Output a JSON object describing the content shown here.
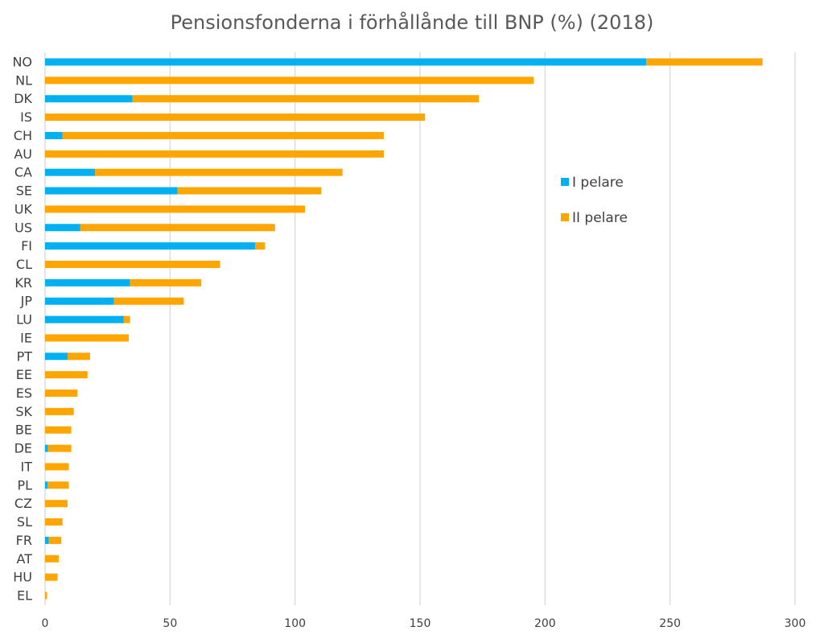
{
  "chart_data": {
    "type": "bar",
    "orientation": "horizontal",
    "stacked": true,
    "title": "Pensionsfonderna i förhållånde till BNP (%) (2018)",
    "xlabel": "",
    "ylabel": "",
    "xlim": [
      0,
      300
    ],
    "xticks": [
      0,
      50,
      100,
      150,
      200,
      250,
      300
    ],
    "grid": true,
    "legend_position": "right",
    "categories": [
      "NO",
      "NL",
      "DK",
      "IS",
      "CH",
      "AU",
      "CA",
      "SE",
      "UK",
      "US",
      "FI",
      "CL",
      "KR",
      "JP",
      "LU",
      "IE",
      "PT",
      "EE",
      "ES",
      "SK",
      "BE",
      "DE",
      "IT",
      "PL",
      "CZ",
      "SL",
      "FR",
      "AT",
      "HU",
      "EL"
    ],
    "series": [
      {
        "name": "I pelare",
        "color": "#00B0F0",
        "values": [
          240.5,
          0,
          35,
          0,
          7,
          0,
          20,
          53,
          0,
          14,
          84,
          0,
          34,
          27.5,
          31.5,
          0,
          9,
          0,
          0,
          0,
          0,
          1.2,
          0,
          1,
          0,
          0,
          1.5,
          0,
          0,
          0
        ]
      },
      {
        "name": "II pelare",
        "color": "#FFA500",
        "values": [
          46.5,
          195.5,
          138.5,
          152,
          128.5,
          135.5,
          99,
          57.5,
          104,
          78,
          4,
          70,
          28.5,
          28,
          2.5,
          33.5,
          9,
          17,
          13,
          11.5,
          10.5,
          9.3,
          9.5,
          8.5,
          9,
          7,
          5,
          5.5,
          5,
          0.8
        ]
      }
    ]
  }
}
